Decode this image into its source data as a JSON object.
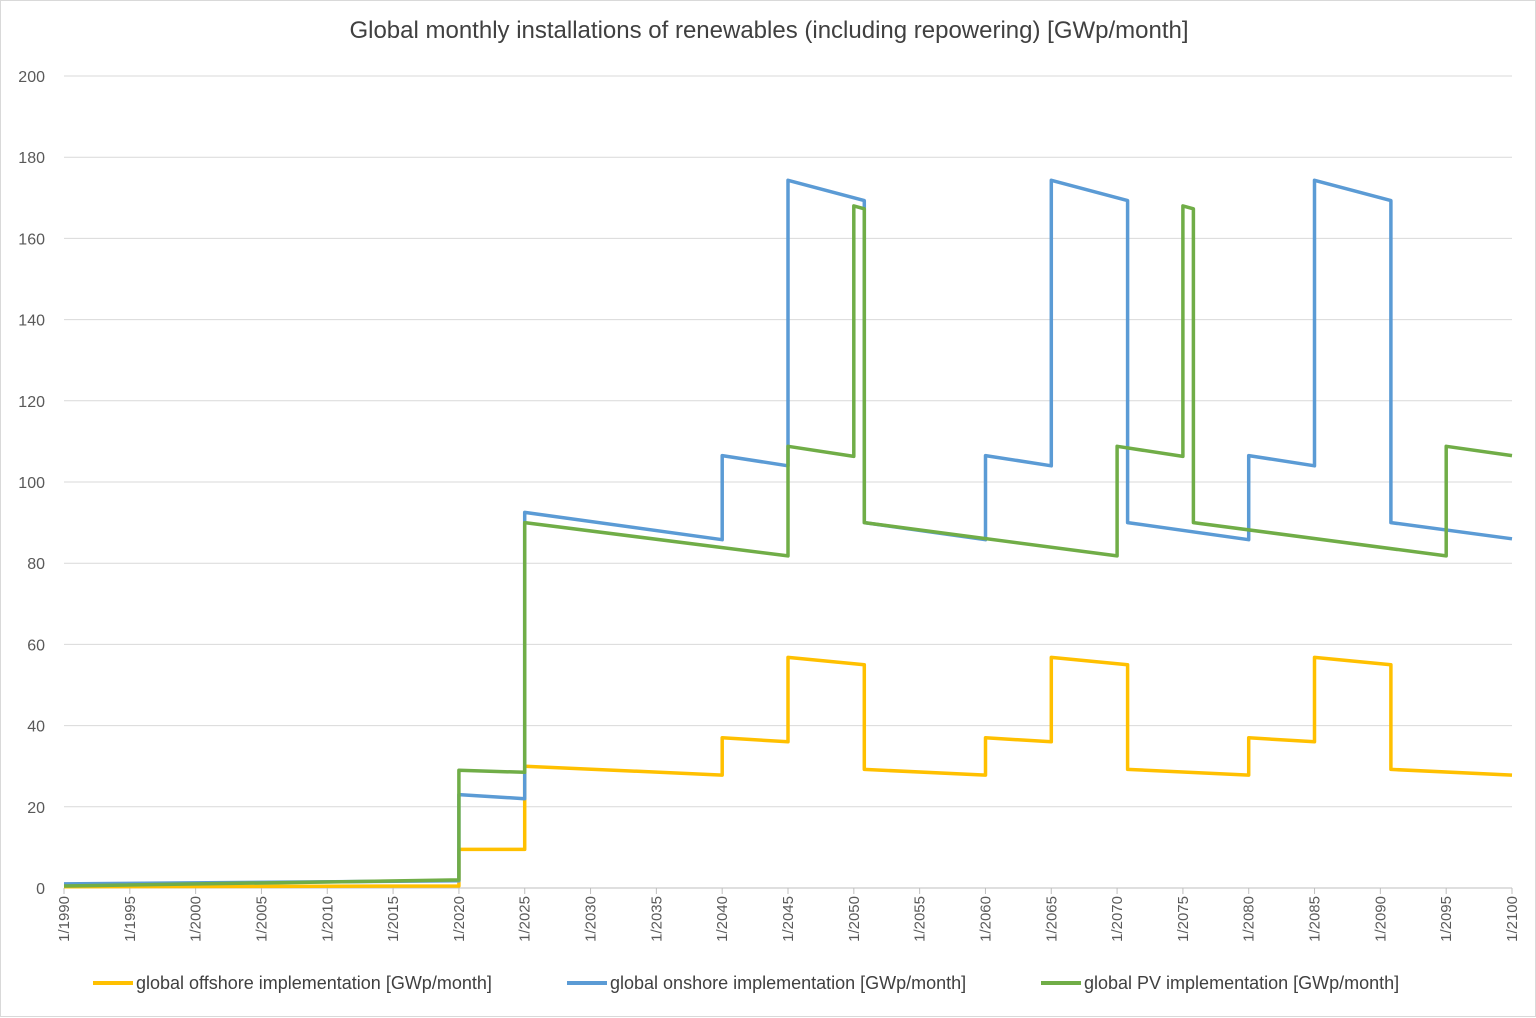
{
  "chart_data": {
    "type": "line",
    "title": "Global monthly installations of renewables (including repowering) [GWp/month]",
    "xlabel": "",
    "ylabel": "",
    "ylim": [
      0,
      200
    ],
    "yticks": [
      0,
      20,
      40,
      60,
      80,
      100,
      120,
      140,
      160,
      180,
      200
    ],
    "xlim": [
      1990,
      2100
    ],
    "xticks": [
      "1/1990",
      "1/1995",
      "1/2000",
      "1/2005",
      "1/2010",
      "1/2015",
      "1/2020",
      "1/2025",
      "1/2030",
      "1/2035",
      "1/2040",
      "1/2045",
      "1/2050",
      "1/2055",
      "1/2060",
      "1/2065",
      "1/2070",
      "1/2075",
      "1/2080",
      "1/2085",
      "1/2090",
      "1/2095",
      "1/2100"
    ],
    "xtick_years": [
      1990,
      1995,
      2000,
      2005,
      2010,
      2015,
      2020,
      2025,
      2030,
      2035,
      2040,
      2045,
      2050,
      2055,
      2060,
      2065,
      2070,
      2075,
      2080,
      2085,
      2090,
      2095,
      2100
    ],
    "grid": true,
    "legend": "bottom",
    "series": [
      {
        "name": "global offshore implementation [GWp/month]",
        "color": "#FFC000",
        "points": [
          [
            1990,
            0.3
          ],
          [
            2020,
            0.5
          ],
          [
            2020,
            9.5
          ],
          [
            2025,
            9.5
          ],
          [
            2025,
            30
          ],
          [
            2040,
            27.8
          ],
          [
            2040,
            37
          ],
          [
            2045,
            36
          ],
          [
            2045,
            56.8
          ],
          [
            2050.8,
            55
          ],
          [
            2050.8,
            29.2
          ],
          [
            2060,
            27.8
          ],
          [
            2060,
            37
          ],
          [
            2065,
            36
          ],
          [
            2065,
            56.8
          ],
          [
            2070.8,
            55
          ],
          [
            2070.8,
            29.2
          ],
          [
            2080,
            27.8
          ],
          [
            2080,
            37
          ],
          [
            2085,
            36
          ],
          [
            2085,
            56.8
          ],
          [
            2090.8,
            55
          ],
          [
            2090.8,
            29.2
          ],
          [
            2100,
            27.8
          ]
        ]
      },
      {
        "name": "global onshore implementation [GWp/month]",
        "color": "#5B9BD5",
        "points": [
          [
            1990,
            1
          ],
          [
            2020,
            1.8
          ],
          [
            2020,
            23
          ],
          [
            2025,
            22
          ],
          [
            2025,
            92.5
          ],
          [
            2040,
            85.8
          ],
          [
            2040,
            106.5
          ],
          [
            2045,
            104
          ],
          [
            2045,
            174.3
          ],
          [
            2050.8,
            169.3
          ],
          [
            2050.8,
            90
          ],
          [
            2060,
            85.8
          ],
          [
            2060,
            106.5
          ],
          [
            2065,
            104
          ],
          [
            2065,
            174.3
          ],
          [
            2070.8,
            169.3
          ],
          [
            2070.8,
            90
          ],
          [
            2080,
            85.8
          ],
          [
            2080,
            106.5
          ],
          [
            2085,
            104
          ],
          [
            2085,
            174.3
          ],
          [
            2090.8,
            169.3
          ],
          [
            2090.8,
            90
          ],
          [
            2100,
            86
          ]
        ]
      },
      {
        "name": "global PV implementation [GWp/month]",
        "color": "#70AD47",
        "points": [
          [
            1990,
            0.5
          ],
          [
            2020,
            2
          ],
          [
            2020,
            29
          ],
          [
            2025,
            28.5
          ],
          [
            2025,
            90
          ],
          [
            2045,
            81.8
          ],
          [
            2045,
            108.8
          ],
          [
            2050,
            106.3
          ],
          [
            2050,
            168
          ],
          [
            2050.8,
            167.3
          ],
          [
            2050.8,
            90
          ],
          [
            2070,
            81.8
          ],
          [
            2070,
            108.8
          ],
          [
            2075,
            106.3
          ],
          [
            2075,
            168
          ],
          [
            2075.8,
            167.3
          ],
          [
            2075.8,
            90
          ],
          [
            2095,
            81.8
          ],
          [
            2095,
            108.8
          ],
          [
            2100,
            106.5
          ]
        ]
      }
    ]
  }
}
